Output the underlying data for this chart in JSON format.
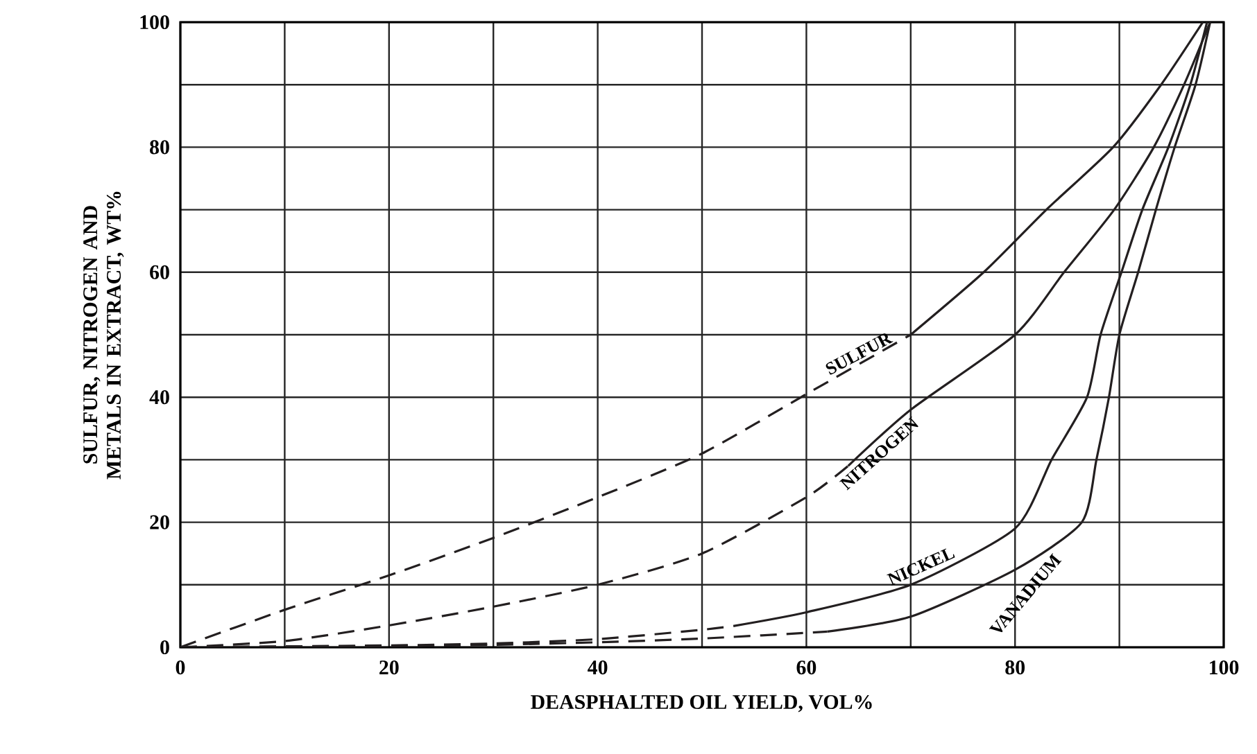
{
  "chart_data": {
    "type": "line",
    "xlabel": "DEASPHALTED OIL YIELD, VOL%",
    "ylabel": "SULFUR, NITROGEN AND METALS IN EXTRACT, WT%",
    "xlim": [
      0,
      100
    ],
    "ylim": [
      0,
      100
    ],
    "xticks": [
      0,
      {
        "value": 10,
        "label": null
      },
      20,
      {
        "value": 30,
        "label": null
      },
      40,
      {
        "value": 50,
        "label": null
      },
      60,
      {
        "value": 70,
        "label": null
      },
      80,
      {
        "value": 90,
        "label": null
      },
      100
    ],
    "yticks": [
      0,
      {
        "value": 10,
        "label": null
      },
      20,
      {
        "value": 30,
        "label": null
      },
      40,
      {
        "value": 50,
        "label": null
      },
      60,
      {
        "value": 70,
        "label": null
      },
      80,
      {
        "value": 90,
        "label": null
      },
      100
    ],
    "grid": true,
    "legend": false,
    "marker": "none",
    "series": [
      {
        "color": "#231f20",
        "line_style": "dashed",
        "x": [
          0,
          10,
          20,
          30,
          40,
          50,
          60,
          70
        ],
        "values": [
          0,
          6,
          11.5,
          17.5,
          24,
          31,
          40.5,
          50
        ]
      },
      {
        "name": "SULFUR",
        "color": "#231f20",
        "line_style": "solid",
        "x": [
          70,
          77,
          83,
          89.4,
          94,
          98
        ],
        "values": [
          50,
          60,
          70,
          80,
          90,
          100
        ]
      },
      {
        "color": "#231f20",
        "line_style": "dashed",
        "x": [
          0,
          10,
          20,
          30,
          40,
          50,
          60,
          64
        ],
        "values": [
          0,
          1,
          3.5,
          6.5,
          10,
          15,
          24,
          29
        ]
      },
      {
        "name": "NITROGEN",
        "color": "#231f20",
        "line_style": "solid",
        "x": [
          64,
          70,
          80,
          84.7,
          89.5,
          93.3,
          96.2,
          98.7
        ],
        "values": [
          29,
          38,
          50,
          60,
          70,
          80,
          90,
          100
        ]
      },
      {
        "color": "#231f20",
        "line_style": "dashed",
        "x": [
          0,
          20,
          30,
          40,
          50,
          53
        ],
        "values": [
          0,
          0.3,
          0.6,
          1.3,
          2.8,
          3.4
        ]
      },
      {
        "name": "NICKEL",
        "color": "#231f20",
        "line_style": "solid",
        "x": [
          53,
          60,
          70,
          80,
          83.5,
          86.9,
          88.2,
          90.2,
          92.2,
          94.7,
          96.8,
          98.4
        ],
        "values": [
          3.4,
          5.6,
          10,
          19,
          30,
          40,
          50,
          60,
          70,
          80,
          90,
          100
        ]
      },
      {
        "color": "#231f20",
        "line_style": "dashed",
        "x": [
          0,
          20,
          30,
          40,
          50,
          62
        ],
        "values": [
          0,
          0.2,
          0.4,
          0.8,
          1.4,
          2.5
        ]
      },
      {
        "name": "VANADIUM",
        "color": "#231f20",
        "line_style": "solid",
        "x": [
          62,
          70,
          80,
          86.4,
          87.8,
          89,
          90,
          91.8,
          93.5,
          95.3,
          97.3,
          98.7
        ],
        "values": [
          2.5,
          4.9,
          12.4,
          20,
          30,
          40,
          50,
          60,
          70,
          80,
          90,
          100
        ]
      }
    ]
  }
}
